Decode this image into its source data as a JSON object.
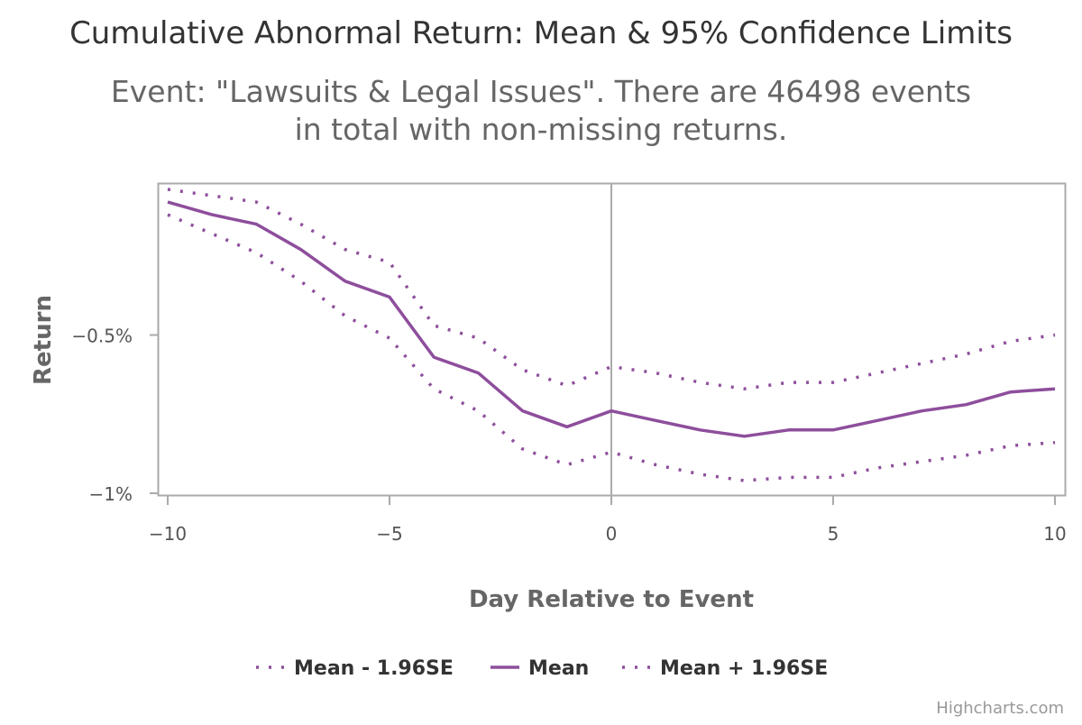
{
  "chart_data": {
    "type": "line",
    "title": "Cumulative Abnormal Return: Mean & 95% Confidence Limits",
    "subtitle_lines": [
      "Event: \"Lawsuits & Legal Issues\". There are 46498 events",
      "in total with non-missing returns."
    ],
    "xlabel": "Day Relative to Event",
    "ylabel": "Return",
    "xlim": [
      -10,
      10
    ],
    "ylim": [
      -1.0,
      -0.02
    ],
    "x_ticks": [
      -10,
      -5,
      0,
      5,
      10
    ],
    "x_tick_labels": [
      "−10",
      "−5",
      "0",
      "5",
      "10"
    ],
    "y_ticks": [
      -1.0,
      -0.5
    ],
    "y_tick_labels": [
      "−1%",
      "−0.5%"
    ],
    "event_line_x": 0,
    "grid": false,
    "legend_position": "bottom-center",
    "x": [
      -10,
      -9,
      -8,
      -7,
      -6,
      -5,
      -4,
      -3,
      -2,
      -1,
      0,
      1,
      2,
      3,
      4,
      5,
      6,
      7,
      8,
      9,
      10
    ],
    "series": [
      {
        "name": "Mean - 1.96SE",
        "style": "dotted",
        "color": "#8e4e9c",
        "values": [
          -0.12,
          -0.18,
          -0.24,
          -0.33,
          -0.44,
          -0.51,
          -0.67,
          -0.74,
          -0.86,
          -0.91,
          -0.87,
          -0.91,
          -0.94,
          -0.96,
          -0.95,
          -0.95,
          -0.92,
          -0.9,
          -0.88,
          -0.85,
          -0.84
        ]
      },
      {
        "name": "Mean",
        "style": "solid",
        "color": "#8e4e9c",
        "values": [
          -0.08,
          -0.12,
          -0.15,
          -0.23,
          -0.33,
          -0.38,
          -0.57,
          -0.62,
          -0.74,
          -0.79,
          -0.74,
          -0.77,
          -0.8,
          -0.82,
          -0.8,
          -0.8,
          -0.77,
          -0.74,
          -0.72,
          -0.68,
          -0.67
        ]
      },
      {
        "name": "Mean + 1.96SE",
        "style": "dotted",
        "color": "#8e4e9c",
        "values": [
          -0.04,
          -0.06,
          -0.08,
          -0.15,
          -0.23,
          -0.27,
          -0.47,
          -0.51,
          -0.61,
          -0.66,
          -0.6,
          -0.62,
          -0.65,
          -0.67,
          -0.65,
          -0.65,
          -0.62,
          -0.59,
          -0.56,
          -0.52,
          -0.5
        ]
      }
    ],
    "credits": "Highcharts.com",
    "colors": {
      "title": "#333333",
      "subtitle": "#666666",
      "axis_title": "#666666",
      "tick_label": "#555555",
      "plot_border": "#aaaaaa",
      "event_line": "#aaaaaa",
      "credits": "#999999"
    }
  }
}
